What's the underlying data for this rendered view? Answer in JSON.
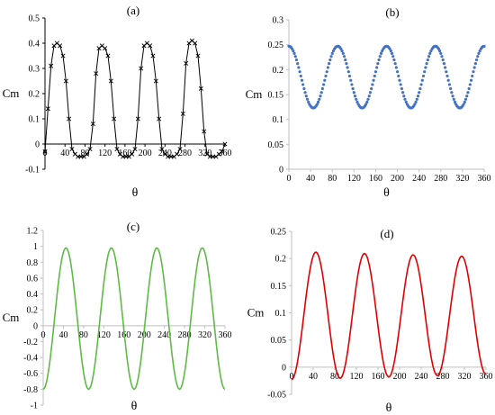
{
  "chart_data": [
    {
      "type": "scatter",
      "panel_label": "(a)",
      "xlabel": "θ",
      "ylabel": "Cm",
      "xlim": [
        0,
        360
      ],
      "ylim": [
        -0.1,
        0.5
      ],
      "xticks": [
        0,
        40,
        80,
        120,
        160,
        200,
        240,
        280,
        320,
        360
      ],
      "yticks": [
        -0.1,
        0,
        0.1,
        0.2,
        0.3,
        0.4,
        0.5
      ],
      "ytick_labels": [
        "-0.1",
        "0",
        "0.1",
        "0.2",
        "0.3",
        "0.4",
        "0.5"
      ],
      "x_axis_at": 0,
      "color": "#000000",
      "marker": "x",
      "series": [
        {
          "x": [
            0,
            6,
            12,
            18,
            24,
            30,
            36,
            42,
            48,
            54,
            60,
            66,
            72,
            78,
            84,
            90,
            96,
            102,
            108,
            114,
            120,
            126,
            132,
            138,
            144,
            150,
            156,
            162,
            168,
            174,
            180,
            186,
            192,
            198,
            204,
            210,
            216,
            222,
            228,
            234,
            240,
            246,
            252,
            258,
            264,
            270,
            276,
            282,
            288,
            294,
            300,
            306,
            312,
            318,
            324,
            330,
            336,
            342,
            348,
            354,
            360
          ],
          "y": [
            -0.03,
            0.14,
            0.31,
            0.39,
            0.4,
            0.39,
            0.35,
            0.25,
            0.1,
            -0.02,
            -0.04,
            -0.05,
            -0.05,
            -0.05,
            -0.04,
            -0.02,
            0.08,
            0.28,
            0.38,
            0.39,
            0.38,
            0.35,
            0.25,
            0.1,
            -0.02,
            -0.04,
            -0.05,
            -0.05,
            -0.05,
            -0.04,
            -0.02,
            0.1,
            0.3,
            0.39,
            0.4,
            0.39,
            0.35,
            0.25,
            0.1,
            -0.02,
            -0.04,
            -0.05,
            -0.05,
            -0.05,
            -0.04,
            -0.02,
            0.12,
            0.32,
            0.4,
            0.41,
            0.4,
            0.35,
            0.22,
            0.05,
            -0.04,
            -0.05,
            -0.05,
            -0.05,
            -0.04,
            -0.03,
            0.0
          ]
        }
      ]
    },
    {
      "type": "scatter",
      "panel_label": "(b)",
      "xlabel": "θ",
      "ylabel": "Cm",
      "xlim": [
        0,
        360
      ],
      "ylim": [
        0,
        0.3
      ],
      "xticks": [
        0,
        40,
        80,
        120,
        160,
        200,
        240,
        280,
        320,
        360
      ],
      "yticks": [
        0,
        0.05,
        0.1,
        0.15,
        0.2,
        0.25,
        0.3
      ],
      "ytick_labels": [
        "0",
        "0.05",
        "0.1",
        "0.15",
        "0.2",
        "0.25",
        "0.3"
      ],
      "x_axis_at": 0,
      "color": "#4472C4",
      "marker": "dot",
      "model": {
        "form": "mean + amplitude*cos(4θ)",
        "mean": 0.185,
        "amplitude": 0.062
      }
    },
    {
      "type": "line",
      "panel_label": "(c)",
      "xlabel": "θ",
      "ylabel": "Cm",
      "xlim": [
        0,
        360
      ],
      "ylim": [
        -1,
        1.2
      ],
      "xticks": [
        0,
        40,
        80,
        120,
        160,
        200,
        240,
        280,
        320,
        360
      ],
      "yticks": [
        -1,
        -0.8,
        -0.6,
        -0.4,
        -0.2,
        0,
        0.2,
        0.4,
        0.6,
        0.8,
        1,
        1.2
      ],
      "ytick_labels": [
        "-1",
        "-0.8",
        "-0.6",
        "-0.4",
        "-0.2",
        "0",
        "0.2",
        "0.4",
        "0.6",
        "0.8",
        "1",
        "1.2"
      ],
      "x_axis_at": 0,
      "color": "#5DBB46",
      "model": {
        "form": "mean - amplitude*cos(4θ)",
        "mean": 0.09,
        "amplitude": 0.89
      }
    },
    {
      "type": "line",
      "panel_label": "(d)",
      "xlabel": "θ",
      "ylabel": "Cm",
      "xlim": [
        0,
        360
      ],
      "ylim": [
        -0.05,
        0.25
      ],
      "xticks": [
        0,
        40,
        80,
        120,
        160,
        200,
        240,
        280,
        320,
        360
      ],
      "yticks": [
        -0.05,
        0,
        0.05,
        0.1,
        0.15,
        0.2,
        0.25
      ],
      "ytick_labels": [
        "-0.05",
        "0",
        "0.05",
        "0.1",
        "0.15",
        "0.2",
        "0.25"
      ],
      "x_axis_at": 0,
      "color": "#E00000",
      "model": {
        "form": "mean - amplitude*cos(4θ)",
        "mean": 0.095,
        "amplitude_start": 0.118,
        "amplitude_end": 0.108
      }
    }
  ]
}
